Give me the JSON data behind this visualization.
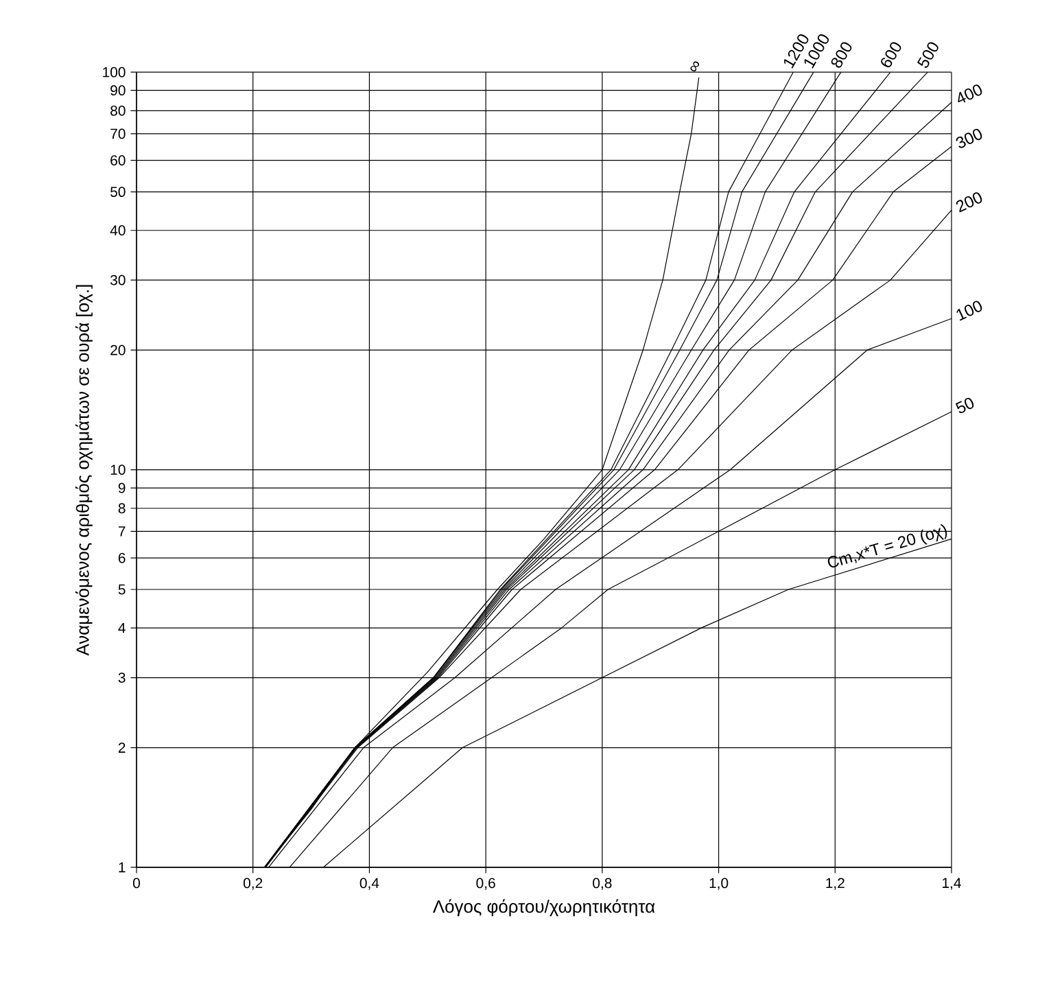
{
  "chart_data": {
    "type": "line",
    "xlabel": "Λόγος φόρτου/χωρητικότητα",
    "ylabel": "Αναμενόμενος αριθμός οχημάτων σε ουρά [οχ.]",
    "xlim": [
      0,
      1.4
    ],
    "ylim": [
      1,
      100
    ],
    "log": "y",
    "grid": true,
    "xticks": [
      0,
      {
        "value": 0.2,
        "label": "0,2"
      },
      {
        "value": 0.4,
        "label": "0,4"
      },
      {
        "value": 0.6,
        "label": "0,6"
      },
      {
        "value": 0.8,
        "label": "0,8"
      },
      {
        "value": 1.0,
        "label": "1,0"
      },
      {
        "value": 1.2,
        "label": "1,2"
      },
      {
        "value": 1.4,
        "label": "1,4"
      }
    ],
    "yticks": [
      1,
      2,
      3,
      4,
      5,
      6,
      7,
      8,
      9,
      10,
      20,
      30,
      40,
      50,
      60,
      70,
      80,
      90,
      100
    ],
    "series": [
      {
        "name": "∞",
        "color": "#000000",
        "x": [
          0.22,
          0.3,
          0.375,
          0.5,
          0.62,
          0.7,
          0.8,
          0.87,
          0.904,
          0.933,
          0.953,
          0.966
        ],
        "values": [
          1,
          1.4,
          2,
          3.1,
          5,
          6.7,
          10,
          20,
          30,
          50,
          70,
          97
        ]
      },
      {
        "name": "1200",
        "color": "#000000",
        "x": [
          0.22,
          0.375,
          0.51,
          0.625,
          0.815,
          0.919,
          0.978,
          1.017,
          1.128
        ],
        "values": [
          1,
          2,
          3,
          5,
          10,
          20,
          30,
          50,
          100
        ]
      },
      {
        "name": "1000",
        "color": "#000000",
        "x": [
          0.22,
          0.375,
          0.51,
          0.627,
          0.82,
          0.933,
          0.997,
          1.04,
          1.163
        ],
        "values": [
          1,
          2,
          3,
          5,
          10,
          20,
          30,
          50,
          100
        ]
      },
      {
        "name": "800",
        "color": "#000000",
        "x": [
          0.22,
          0.375,
          0.51,
          0.63,
          0.83,
          0.953,
          1.027,
          1.08,
          1.21
        ],
        "values": [
          1,
          2,
          3,
          5,
          10,
          20,
          30,
          50,
          100
        ]
      },
      {
        "name": "600",
        "color": "#000000",
        "x": [
          0.22,
          0.375,
          0.512,
          0.633,
          0.845,
          0.973,
          1.062,
          1.13,
          1.295
        ],
        "values": [
          1,
          2,
          3,
          5,
          10,
          20,
          30,
          50,
          100
        ]
      },
      {
        "name": "500",
        "color": "#000000",
        "x": [
          0.22,
          0.376,
          0.514,
          0.636,
          0.855,
          0.992,
          1.09,
          1.166,
          1.359
        ],
        "values": [
          1,
          2,
          3,
          5,
          10,
          20,
          30,
          50,
          100
        ]
      },
      {
        "name": "400",
        "color": "#000000",
        "x": [
          0.221,
          0.377,
          0.516,
          0.64,
          0.87,
          1.018,
          1.136,
          1.23,
          1.4
        ],
        "values": [
          1,
          2,
          3,
          5,
          10,
          20,
          30,
          50,
          84
        ]
      },
      {
        "name": "300",
        "color": "#000000",
        "x": [
          0.221,
          0.378,
          0.518,
          0.645,
          0.89,
          1.052,
          1.196,
          1.3,
          1.4
        ],
        "values": [
          1,
          2,
          3,
          5,
          10,
          20,
          30,
          50,
          65
        ]
      },
      {
        "name": "200",
        "color": "#000000",
        "x": [
          0.222,
          0.38,
          0.52,
          0.66,
          0.93,
          1.126,
          1.295,
          1.4
        ],
        "values": [
          1,
          2,
          3,
          5,
          10,
          20,
          30,
          45
        ]
      },
      {
        "name": "100",
        "color": "#000000",
        "x": [
          0.227,
          0.39,
          0.547,
          0.72,
          1.02,
          1.255,
          1.4
        ],
        "values": [
          1,
          2,
          3,
          5,
          10,
          20,
          24
        ]
      },
      {
        "name": "50",
        "color": "#000000",
        "x": [
          0.263,
          0.44,
          0.61,
          0.73,
          0.81,
          1.0,
          1.2,
          1.4
        ],
        "values": [
          1,
          2,
          3,
          4,
          5,
          7,
          10,
          14
        ]
      },
      {
        "name": "Cm,x*T = 20 (οχ)",
        "color": "#000000",
        "x": [
          0.321,
          0.56,
          0.8,
          0.97,
          1.12,
          1.4
        ],
        "values": [
          1,
          2,
          3,
          4,
          5,
          6.7
        ]
      }
    ]
  }
}
